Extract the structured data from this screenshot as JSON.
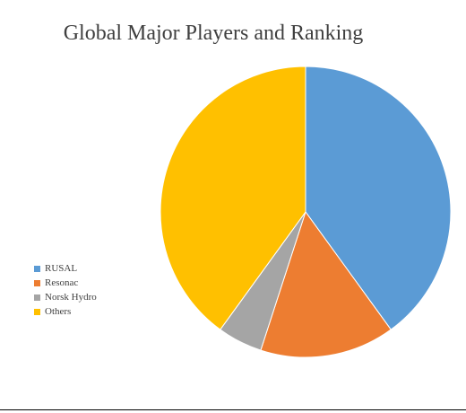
{
  "chart_data": {
    "type": "pie",
    "title": "Global Major Players and Ranking",
    "categories": [
      "RUSAL",
      "Resonac",
      "Norsk Hydro",
      "Others"
    ],
    "values": [
      40,
      15,
      5,
      40
    ],
    "colors": [
      "#5b9bd5",
      "#ed7d31",
      "#a5a5a5",
      "#ffc000"
    ],
    "start_angle_deg": 0,
    "direction": "clockwise",
    "legend_position": "left",
    "data_labels_shown": false
  }
}
